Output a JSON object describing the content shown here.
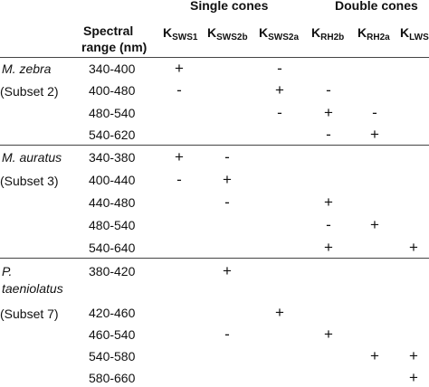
{
  "header": {
    "group_single": "Single cones",
    "group_double": "Double cones",
    "spectral_line1": "Spectral",
    "spectral_line2": "range (nm)",
    "columns": [
      {
        "main": "K",
        "sub": "SWS1"
      },
      {
        "main": "K",
        "sub": "SWS2b"
      },
      {
        "main": "K",
        "sub": "SWS2a"
      },
      {
        "main": "K",
        "sub": "RH2b"
      },
      {
        "main": "K",
        "sub": "RH2a"
      },
      {
        "main": "K",
        "sub": "LWS"
      }
    ]
  },
  "groups": [
    {
      "species": "M. zebra",
      "subset": "(Subset 2)",
      "rows": [
        {
          "range": "340-400",
          "vals": [
            "+",
            "",
            "-",
            "",
            "",
            ""
          ]
        },
        {
          "range": "400-480",
          "vals": [
            "-",
            "",
            "+",
            "-",
            "",
            ""
          ]
        },
        {
          "range": "480-540",
          "vals": [
            "",
            "",
            "-",
            "+",
            "-",
            ""
          ]
        },
        {
          "range": "540-620",
          "vals": [
            "",
            "",
            "",
            "-",
            "+",
            ""
          ]
        }
      ]
    },
    {
      "species": "M. auratus",
      "subset": "(Subset 3)",
      "rows": [
        {
          "range": "340-380",
          "vals": [
            "+",
            "-",
            "",
            "",
            "",
            ""
          ]
        },
        {
          "range": "400-440",
          "vals": [
            "-",
            "+",
            "",
            "",
            "",
            ""
          ]
        },
        {
          "range": "440-480",
          "vals": [
            "",
            "-",
            "",
            "+",
            "",
            ""
          ]
        },
        {
          "range": "480-540",
          "vals": [
            "",
            "",
            "",
            "-",
            "+",
            ""
          ]
        },
        {
          "range": "540-640",
          "vals": [
            "",
            "",
            "",
            "+",
            "",
            "+"
          ]
        }
      ]
    },
    {
      "species": "P.",
      "species2": "taeniolatus",
      "subset": "(Subset 7)",
      "rows": [
        {
          "range": "380-420",
          "vals": [
            "",
            "+",
            "",
            "",
            "",
            ""
          ]
        },
        {
          "range": "420-460",
          "vals": [
            "",
            "",
            "+",
            "",
            "",
            ""
          ]
        },
        {
          "range": "460-540",
          "vals": [
            "",
            "-",
            "",
            "+",
            "",
            ""
          ]
        },
        {
          "range": "540-580",
          "vals": [
            "",
            "",
            "",
            "",
            "+",
            "+"
          ]
        },
        {
          "range": "580-660",
          "vals": [
            "",
            "",
            "",
            "",
            "",
            "+"
          ]
        }
      ]
    }
  ]
}
